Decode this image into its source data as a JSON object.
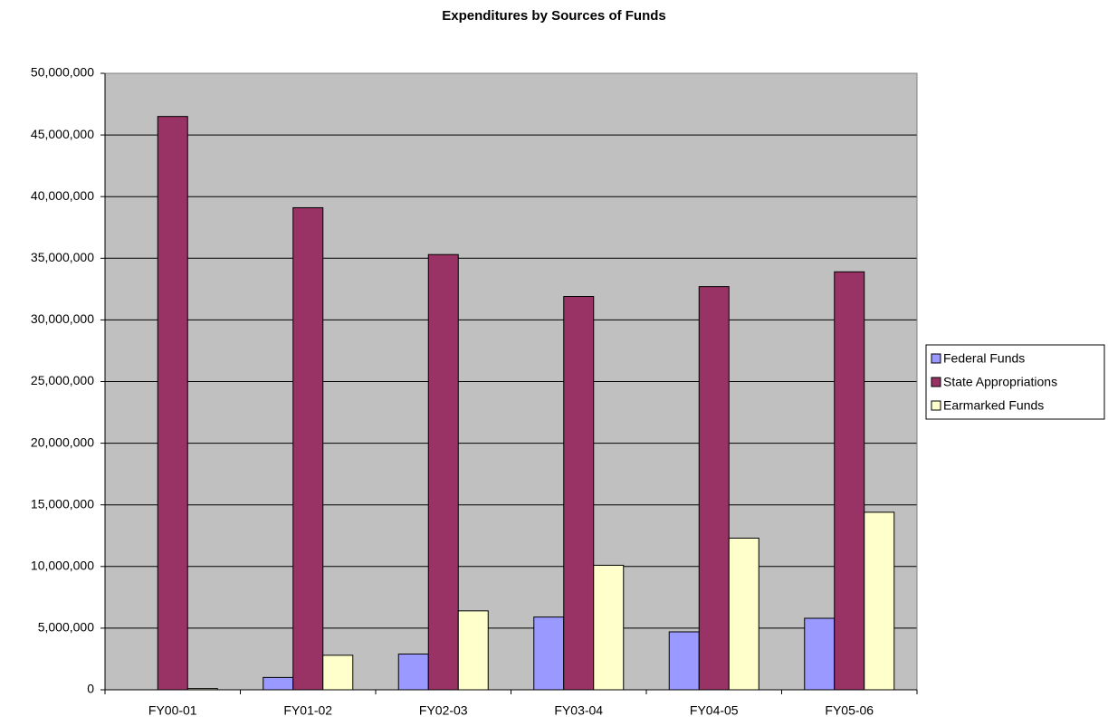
{
  "chart_data": {
    "type": "bar",
    "title": "Expenditures by Sources of Funds",
    "categories": [
      "FY00-01",
      "FY01-02",
      "FY02-03",
      "FY03-04",
      "FY04-05",
      "FY05-06"
    ],
    "series": [
      {
        "name": "Federal Funds",
        "color": "#9999ff",
        "values": [
          0,
          1000000,
          2900000,
          5900000,
          4700000,
          5800000
        ]
      },
      {
        "name": "State Appropriations",
        "color": "#993366",
        "values": [
          46500000,
          39100000,
          35300000,
          31900000,
          32700000,
          33900000
        ]
      },
      {
        "name": "Earmarked Funds",
        "color": "#ffffcc",
        "values": [
          100000,
          2800000,
          6400000,
          10100000,
          12300000,
          14400000
        ]
      }
    ],
    "ylim": [
      0,
      50000000
    ],
    "yticks": [
      0,
      {
        "value": 5000000,
        "label": "5,000,000"
      },
      {
        "value": 10000000,
        "label": "10,000,000"
      },
      {
        "value": 15000000,
        "label": "15,000,000"
      },
      {
        "value": 20000000,
        "label": "20,000,000"
      },
      {
        "value": 25000000,
        "label": "25,000,000"
      },
      {
        "value": 30000000,
        "label": "30,000,000"
      },
      {
        "value": 35000000,
        "label": "35,000,000"
      },
      {
        "value": 40000000,
        "label": "40,000,000"
      },
      {
        "value": 45000000,
        "label": "45,000,000"
      },
      {
        "value": 50000000,
        "label": "50,000,000"
      }
    ],
    "grid": true,
    "legend": "right"
  }
}
